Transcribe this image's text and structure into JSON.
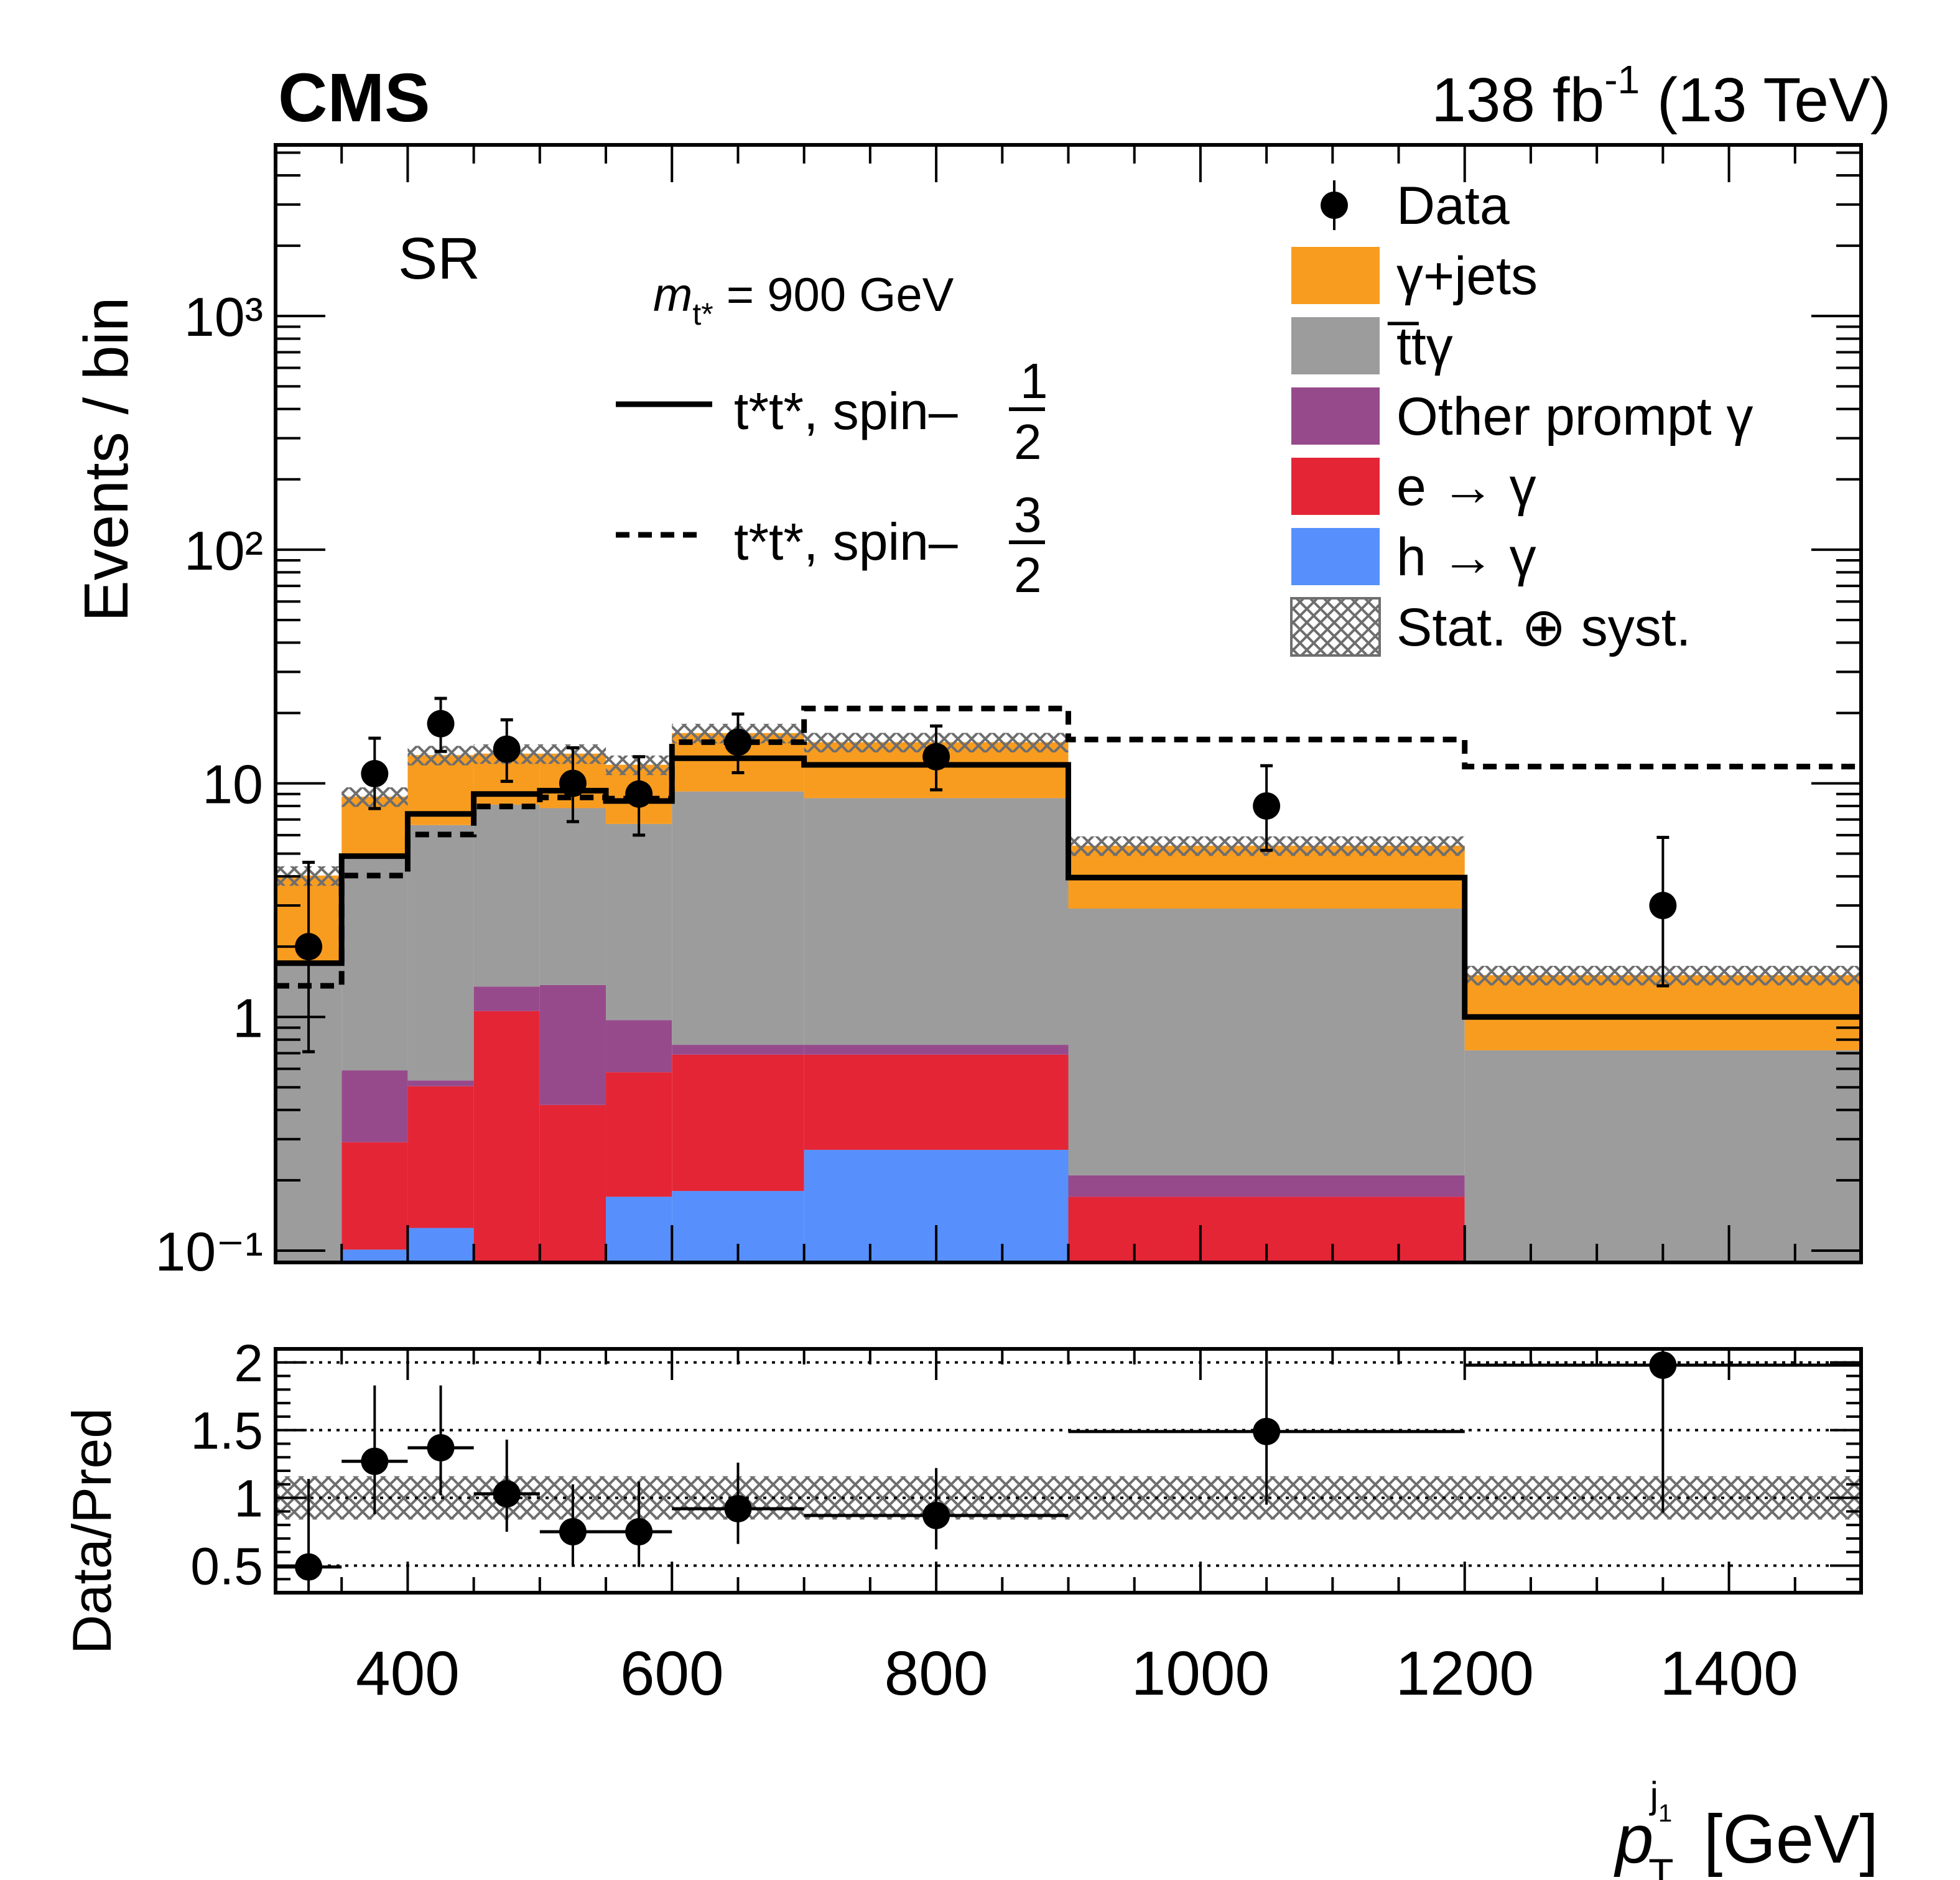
{
  "header": {
    "experiment": "CMS",
    "lumi_prefix": "138 fb",
    "lumi_exp": "-1",
    "lumi_suffix": " (13 TeV)"
  },
  "region_label": "SR",
  "signal_legend": {
    "mass_symbol": "m",
    "mass_sub": "t*",
    "mass_text": " = 900 GeV",
    "entries": [
      {
        "name": "spin-1/2",
        "prefix": "t*t*, spin–",
        "frac_num": "1",
        "frac_den": "2",
        "style": "solid"
      },
      {
        "name": "spin-3/2",
        "prefix": "t*t*, spin–",
        "frac_num": "3",
        "frac_den": "2",
        "style": "dashed"
      }
    ]
  },
  "legend": [
    {
      "label": "Data",
      "kind": "marker"
    },
    {
      "label": "γ+jets",
      "kind": "fill",
      "color": "#f89c20"
    },
    {
      "label": "t̅tγ",
      "kind": "fill",
      "color": "#9c9c9c"
    },
    {
      "label": "Other prompt γ",
      "kind": "fill",
      "color": "#964a8b"
    },
    {
      "label": "e → γ",
      "kind": "fill",
      "color": "#e42536"
    },
    {
      "label": "h → γ",
      "kind": "fill",
      "color": "#5790fc"
    },
    {
      "label": "Stat. ⊕ syst.",
      "kind": "hatch",
      "color": "#6e6e6e"
    }
  ],
  "chart_data": [
    {
      "type": "bar",
      "subtype": "stacked-histogram-log",
      "title": "",
      "xlabel": "p_T^{j1} [GeV]",
      "ylabel": "Events / bin",
      "xlim": [
        300,
        1500
      ],
      "ylim": [
        0.089,
        5400
      ],
      "yscale": "log",
      "bin_edges": [
        300,
        350,
        400,
        450,
        500,
        550,
        600,
        700,
        900,
        1200,
        1500
      ],
      "y_tick_labels": [
        "10⁻¹",
        "1",
        "10",
        "10²",
        "10³"
      ],
      "y_tick_values": [
        0.1,
        1,
        10,
        100,
        1000
      ],
      "series_stack_order": [
        "h → γ",
        "e → γ",
        "Other prompt γ",
        "t̅tγ",
        "γ+jets"
      ],
      "series": [
        {
          "name": "h → γ",
          "color": "#5790fc",
          "values": [
            0,
            0.101,
            0.125,
            0,
            0,
            0.17,
            0.18,
            0.27,
            0,
            0
          ]
        },
        {
          "name": "e → γ",
          "color": "#e42536",
          "values": [
            0,
            0.19,
            0.38,
            1.06,
            0.42,
            0.41,
            0.51,
            0.42,
            0.17,
            0
          ]
        },
        {
          "name": "Other prompt γ",
          "color": "#964a8b",
          "values": [
            0,
            0.3,
            0.03,
            0.29,
            0.95,
            0.39,
            0.07,
            0.07,
            0.04,
            0
          ]
        },
        {
          "name": "t̅tγ",
          "color": "#9c9c9c",
          "values": [
            1.7,
            4.29,
            6.09,
            6.75,
            6.46,
            5.73,
            8.47,
            7.88,
            2.7,
            0.72
          ]
        },
        {
          "name": "γ+jets",
          "color": "#f89c20",
          "values": [
            2.33,
            3.89,
            6.58,
            5.3,
            5.57,
            5.31,
            7.18,
            6.36,
            2.5,
            0.79
          ]
        }
      ],
      "stack_totals": [
        4.03,
        8.77,
        13.2,
        13.4,
        13.4,
        12.0,
        16.4,
        15.0,
        5.41,
        1.51
      ],
      "uncertainty_band": {
        "name": "Stat. ⊕ syst.",
        "rel_width": 0.16
      },
      "signal": [
        {
          "name": "t*t*, spin-1/2",
          "style": "solid",
          "values": [
            1.7,
            4.88,
            7.4,
            9.0,
            9.3,
            8.4,
            12.8,
            12.0,
            3.95,
            1.0
          ]
        },
        {
          "name": "t*t*, spin-3/2",
          "style": "dashed",
          "values": [
            1.36,
            4.03,
            6.04,
            7.96,
            8.7,
            8.6,
            15.0,
            20.9,
            15.4,
            11.8
          ]
        }
      ],
      "data": {
        "name": "Data",
        "x": [
          325,
          375,
          425,
          475,
          525,
          575,
          650,
          800,
          1050,
          1350
        ],
        "values": [
          2,
          11,
          18,
          14,
          10,
          9,
          15,
          13,
          8,
          3
        ],
        "err_up": [
          4.59,
          15.6,
          23.1,
          18.7,
          14.2,
          13.0,
          19.8,
          17.6,
          11.9,
          5.87
        ],
        "err_down": [
          0.71,
          7.8,
          13.7,
          10.2,
          6.86,
          6.0,
          11.1,
          9.38,
          5.17,
          1.36
        ]
      }
    },
    {
      "type": "scatter",
      "subtype": "ratio",
      "ylabel": "Data/Pred",
      "xlabel": "p_T^{j1} [GeV]",
      "xlim": [
        300,
        1500
      ],
      "ylim": [
        0.3,
        2.1
      ],
      "y_tick_labels": [
        "0.5",
        "1",
        "1.5",
        "2"
      ],
      "y_tick_values": [
        0.5,
        1,
        1.5,
        2
      ],
      "gridlines": [
        0.5,
        1,
        1.5,
        2
      ],
      "x_tick_labels": [
        "400",
        "600",
        "800",
        "1000",
        "1200",
        "1400"
      ],
      "x_tick_values": [
        400,
        600,
        800,
        1000,
        1200,
        1400
      ],
      "bin_edges": [
        300,
        350,
        400,
        450,
        500,
        550,
        600,
        700,
        900,
        1200,
        1500
      ],
      "x": [
        325,
        375,
        425,
        475,
        525,
        575,
        650,
        800,
        1050,
        1350
      ],
      "values": [
        0.49,
        1.27,
        1.37,
        1.03,
        0.75,
        0.75,
        0.92,
        0.87,
        1.49,
        1.98
      ],
      "err_up": [
        1.14,
        1.83,
        1.83,
        1.43,
        1.1,
        1.12,
        1.26,
        1.22,
        2.1,
        2.1
      ],
      "err_down": [
        0.3,
        0.88,
        1.02,
        0.75,
        0.5,
        0.49,
        0.66,
        0.62,
        0.95,
        0.89
      ],
      "band": [
        0.84,
        1.16
      ]
    }
  ]
}
